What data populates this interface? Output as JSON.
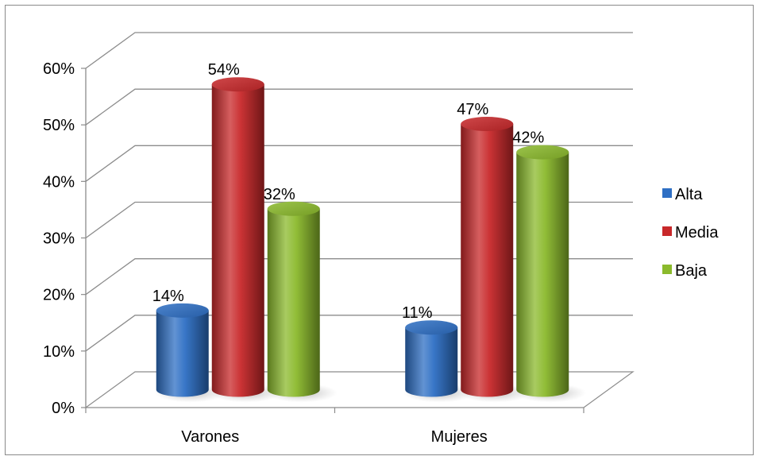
{
  "chart_data": {
    "type": "bar",
    "categories": [
      "Varones",
      "Mujeres"
    ],
    "series": [
      {
        "name": "Alta",
        "values": [
          14,
          11
        ],
        "labels": [
          "14%",
          "11%"
        ],
        "color": "#2e6fc4"
      },
      {
        "name": "Media",
        "values": [
          54,
          47
        ],
        "labels": [
          "54%",
          "47%"
        ],
        "color": "#c8282a"
      },
      {
        "name": "Baja",
        "values": [
          32,
          42
        ],
        "labels": [
          "32%",
          "42%"
        ],
        "color": "#8bba2c"
      }
    ],
    "title": "",
    "xlabel": "",
    "ylabel": "",
    "ylim": [
      0,
      60
    ],
    "yticks": [
      "0%",
      "10%",
      "20%",
      "30%",
      "40%",
      "50%",
      "60%"
    ],
    "grid": true,
    "legend_position": "right",
    "style": "3d-cylinder"
  }
}
